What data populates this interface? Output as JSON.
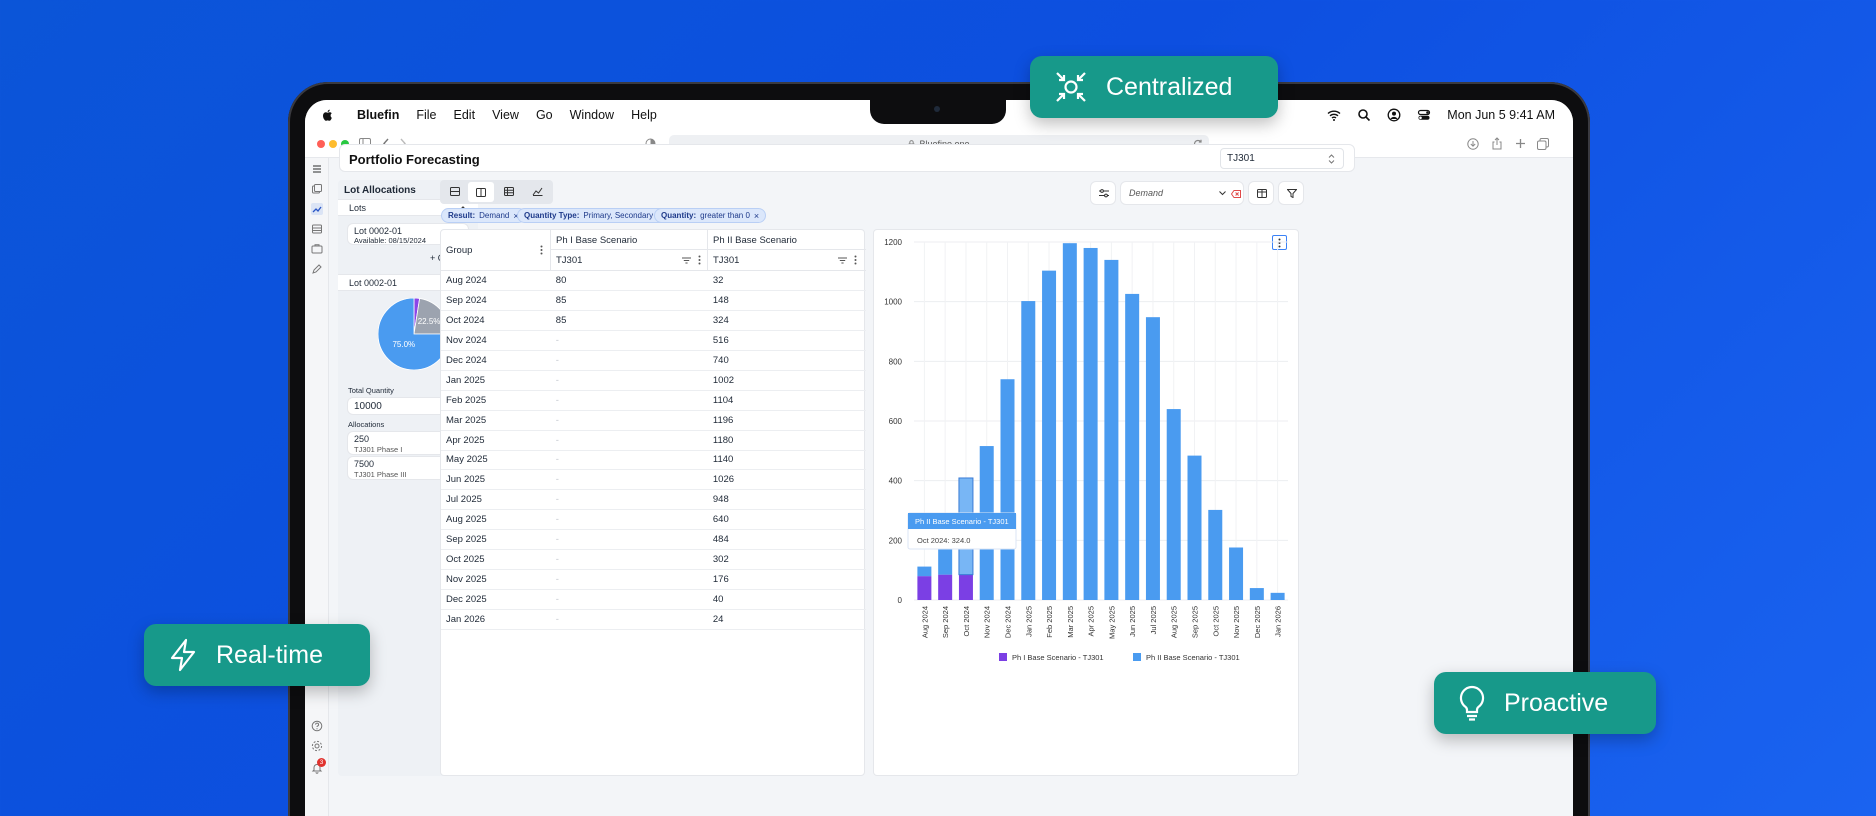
{
  "menubar": {
    "app": "Bluefin",
    "items": [
      "File",
      "Edit",
      "View",
      "Go",
      "Window",
      "Help"
    ],
    "clock": "Mon Jun 5  9:41 AM"
  },
  "browser": {
    "url": "Bluefine.one"
  },
  "page": {
    "title": "Portfolio Forecasting",
    "selector_value": "TJ301"
  },
  "lots_panel": {
    "title": "Lot Allocations",
    "lots_header": "Lots",
    "lot_item": {
      "name": "Lot 0002-01",
      "available": "Available: 08/15/2024"
    },
    "create_label": "+ Create",
    "detail_title": "Lot 0002-01",
    "pie": {
      "slices": [
        {
          "label": "75.0%",
          "value": 75.0,
          "color": "#4a9bf0"
        },
        {
          "label": "22.5%",
          "value": 22.5,
          "color": "#9ca3af"
        },
        {
          "label": "",
          "value": 2.5,
          "color": "#8b46e8"
        }
      ]
    },
    "total_label": "Total Quantity",
    "total_value": "10000",
    "allocations_label": "Allocations",
    "allocations": [
      {
        "qty": "250",
        "name": "TJ301 Phase I"
      },
      {
        "qty": "7500",
        "name": "TJ301 Phase III"
      }
    ]
  },
  "toolbar": {
    "demand_placeholder": "Demand"
  },
  "filters": [
    {
      "key": "Result:",
      "value": "Demand"
    },
    {
      "key": "Quantity Type:",
      "value": "Primary, Secondary"
    },
    {
      "key": "Quantity:",
      "value": "greater than 0"
    }
  ],
  "table": {
    "group_header": "Group",
    "col1_header": "Ph I Base Scenario",
    "col1_sub": "TJ301",
    "col2_header": "Ph II Base Scenario",
    "col2_sub": "TJ301",
    "rows": [
      [
        "Aug 2024",
        "80",
        "32"
      ],
      [
        "Sep 2024",
        "85",
        "148"
      ],
      [
        "Oct 2024",
        "85",
        "324"
      ],
      [
        "Nov 2024",
        "-",
        "516"
      ],
      [
        "Dec 2024",
        "-",
        "740"
      ],
      [
        "Jan 2025",
        "-",
        "1002"
      ],
      [
        "Feb 2025",
        "-",
        "1104"
      ],
      [
        "Mar 2025",
        "-",
        "1196"
      ],
      [
        "Apr 2025",
        "-",
        "1180"
      ],
      [
        "May 2025",
        "-",
        "1140"
      ],
      [
        "Jun 2025",
        "-",
        "1026"
      ],
      [
        "Jul 2025",
        "-",
        "948"
      ],
      [
        "Aug 2025",
        "-",
        "640"
      ],
      [
        "Sep 2025",
        "-",
        "484"
      ],
      [
        "Oct 2025",
        "-",
        "302"
      ],
      [
        "Nov 2025",
        "-",
        "176"
      ],
      [
        "Dec 2025",
        "-",
        "40"
      ],
      [
        "Jan 2026",
        "-",
        "24"
      ]
    ]
  },
  "chart_data": {
    "type": "bar",
    "stacked": true,
    "categories": [
      "Aug 2024",
      "Sep 2024",
      "Oct 2024",
      "Nov 2024",
      "Dec 2024",
      "Jan 2025",
      "Feb 2025",
      "Mar 2025",
      "Apr 2025",
      "May 2025",
      "Jun 2025",
      "Jul 2025",
      "Aug 2025",
      "Sep 2025",
      "Oct 2025",
      "Nov 2025",
      "Dec 2025",
      "Jan 2026"
    ],
    "series": [
      {
        "name": "Ph I Base Scenario - TJ301",
        "color": "#7b3fe4",
        "values": [
          80,
          85,
          85,
          0,
          0,
          0,
          0,
          0,
          0,
          0,
          0,
          0,
          0,
          0,
          0,
          0,
          0,
          0
        ]
      },
      {
        "name": "Ph II Base Scenario - TJ301",
        "color": "#4a9bf0",
        "values": [
          32,
          148,
          324,
          516,
          740,
          1002,
          1104,
          1196,
          1180,
          1140,
          1026,
          948,
          640,
          484,
          302,
          176,
          40,
          24
        ]
      }
    ],
    "ylim": [
      0,
      1200
    ],
    "yticks": [
      0,
      200,
      400,
      600,
      800,
      1000,
      1200
    ],
    "grid": true,
    "legend": "bottom",
    "tooltip": {
      "title": "Ph II Base Scenario - TJ301",
      "text": "Oct 2024: 324.0"
    }
  },
  "badges": {
    "centralized": "Centralized",
    "realtime": "Real-time",
    "proactive": "Proactive"
  },
  "notifications_count": "3"
}
